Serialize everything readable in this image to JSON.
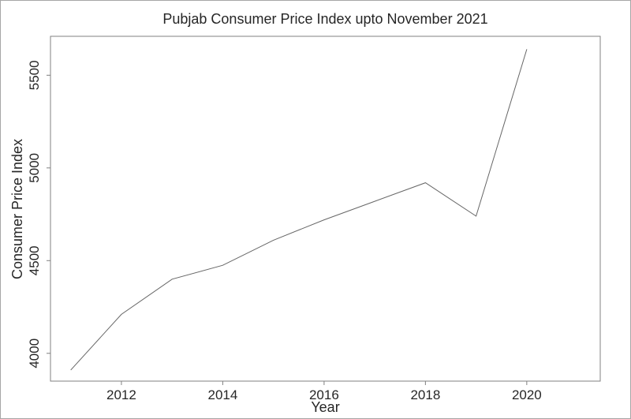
{
  "chart_data": {
    "type": "line",
    "title": "Pubjab Consumer Price Index upto November 2021",
    "xlabel": "Year",
    "ylabel": "Consumer Price Index",
    "x": [
      2011,
      2012,
      2013,
      2014,
      2015,
      2016,
      2017,
      2018,
      2019,
      2020
    ],
    "values": [
      3910,
      4210,
      4400,
      4475,
      4610,
      4720,
      4820,
      4920,
      4740,
      5640
    ],
    "xticks": [
      2012,
      2014,
      2016,
      2018,
      2020
    ],
    "yticks": [
      4000,
      4500,
      5000,
      5500
    ],
    "xlim": [
      2010.6,
      2021.45
    ],
    "ylim": [
      3850,
      5710
    ],
    "grid": false,
    "legend": "none",
    "colors": {
      "line": "#666666",
      "box": "#808080",
      "tick": "#808080",
      "text": "#262626",
      "background": "#ffffff",
      "outer_border": "#a6a6a6"
    }
  }
}
